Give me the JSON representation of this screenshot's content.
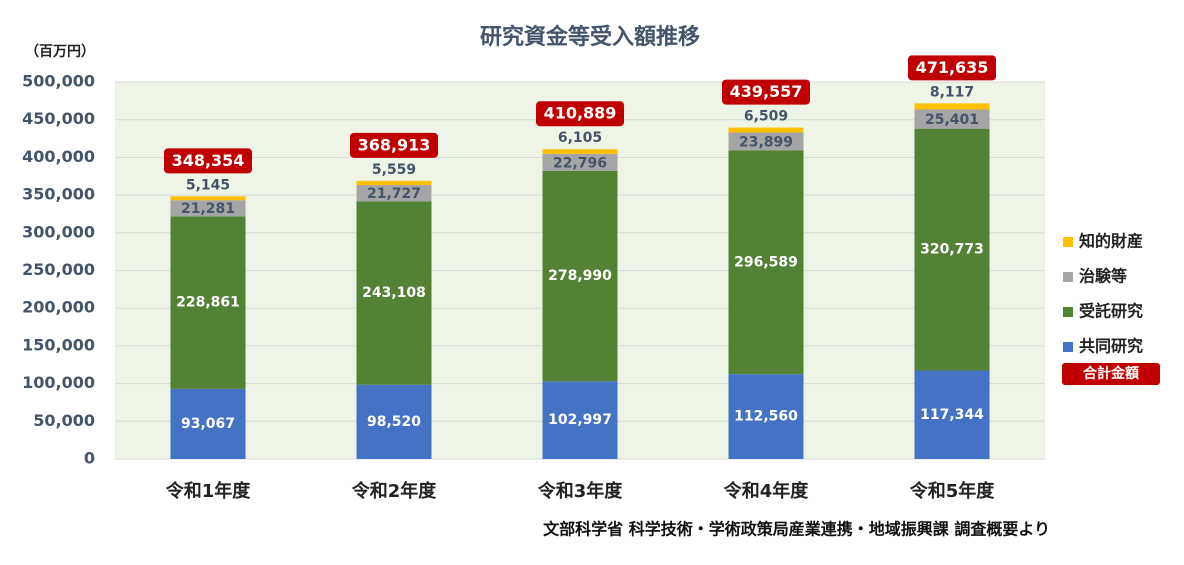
{
  "chart_data": {
    "type": "stacked_bar",
    "title": "研究資金等受入額推移",
    "y_unit_label": "（百万円）",
    "categories": [
      "令和1年度",
      "令和2年度",
      "令和3年度",
      "令和4年度",
      "令和5年度"
    ],
    "series": [
      {
        "name": "共同研究",
        "color": "#4472c4",
        "values": [
          93067,
          98520,
          102997,
          112560,
          117344
        ],
        "value_labels": [
          "93,067",
          "98,520",
          "102,997",
          "112,560",
          "117,344"
        ]
      },
      {
        "name": "受託研究",
        "color": "#548235",
        "values": [
          228861,
          243108,
          278990,
          296589,
          320773
        ],
        "value_labels": [
          "228,861",
          "243,108",
          "278,990",
          "296,589",
          "320,773"
        ]
      },
      {
        "name": "治験等",
        "color": "#a5a5a5",
        "values": [
          21281,
          21727,
          22796,
          23899,
          25401
        ],
        "value_labels": [
          "21,281",
          "21,727",
          "22,796",
          "23,899",
          "25,401"
        ]
      },
      {
        "name": "知的財産",
        "color": "#ffc000",
        "values": [
          5145,
          5559,
          6105,
          6509,
          8117
        ],
        "value_labels": [
          "5,145",
          "5,559",
          "6,105",
          "6,509",
          "8,117"
        ]
      }
    ],
    "totals": {
      "name": "合計金額",
      "color": "#c00000",
      "values": [
        348354,
        368913,
        410889,
        439557,
        471635
      ],
      "value_labels": [
        "348,354",
        "368,913",
        "410,889",
        "439,557",
        "471,635"
      ]
    },
    "ylim": [
      0,
      500000
    ],
    "yticks": [
      0,
      {
        "value": 50000,
        "label": "50,000"
      },
      {
        "value": 100000,
        "label": "100,000"
      },
      {
        "value": 150000,
        "label": "150,000"
      },
      {
        "value": 200000,
        "label": "200,000"
      },
      {
        "value": 250000,
        "label": "250,000"
      },
      {
        "value": 300000,
        "label": "300,000"
      },
      {
        "value": 350000,
        "label": "350,000"
      },
      {
        "value": 400000,
        "label": "400,000"
      },
      {
        "value": 450000,
        "label": "450,000"
      },
      {
        "value": 500000,
        "label": "500,000"
      }
    ],
    "grid": true,
    "legend": "right",
    "source": "文部科学省 科学技術・学術政策局産業連携・地域振興課 調査概要より"
  }
}
